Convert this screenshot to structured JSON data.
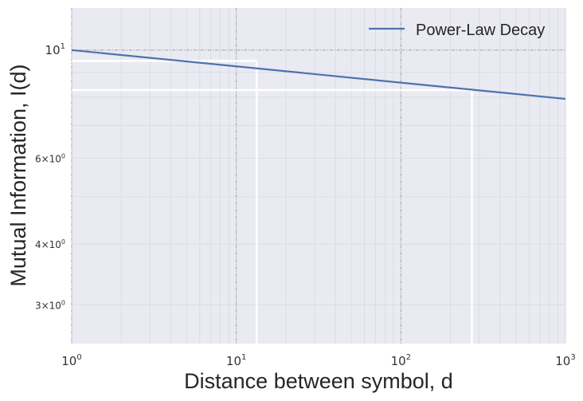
{
  "chart_data": {
    "type": "line",
    "xlabel": "Distance between symbol, d",
    "ylabel": "Mutual Information, I(d)",
    "xscale": "log",
    "yscale": "log",
    "xlim": [
      1,
      1000
    ],
    "ylim": [
      2.5,
      12.2
    ],
    "grid": true,
    "legend_position": "top-right",
    "x_ticks": [
      {
        "value": 1,
        "base": "10",
        "exp": "0"
      },
      {
        "value": 10,
        "base": "10",
        "exp": "1"
      },
      {
        "value": 100,
        "base": "10",
        "exp": "2"
      },
      {
        "value": 1000,
        "base": "10",
        "exp": "3"
      }
    ],
    "y_ticks": [
      {
        "value": 3,
        "mant": "3",
        "base": "10",
        "exp": "0"
      },
      {
        "value": 4,
        "mant": "4",
        "base": "10",
        "exp": "0"
      },
      {
        "value": 6,
        "mant": "6",
        "base": "10",
        "exp": "0"
      },
      {
        "value": 10,
        "mant": "",
        "base": "10",
        "exp": "1"
      }
    ],
    "series": [
      {
        "name": "Power-Law Decay",
        "color": "#4c72b0",
        "x": [
          1,
          1000
        ],
        "y": [
          10.0,
          7.94
        ]
      }
    ],
    "reference_lines": [
      {
        "x": 13.3,
        "y": 9.5,
        "color": "#ffffff"
      },
      {
        "x": 270,
        "y": 8.28,
        "color": "#ffffff"
      }
    ],
    "reference_grid": {
      "x": [
        1,
        10,
        100
      ],
      "y": [
        10
      ]
    }
  }
}
